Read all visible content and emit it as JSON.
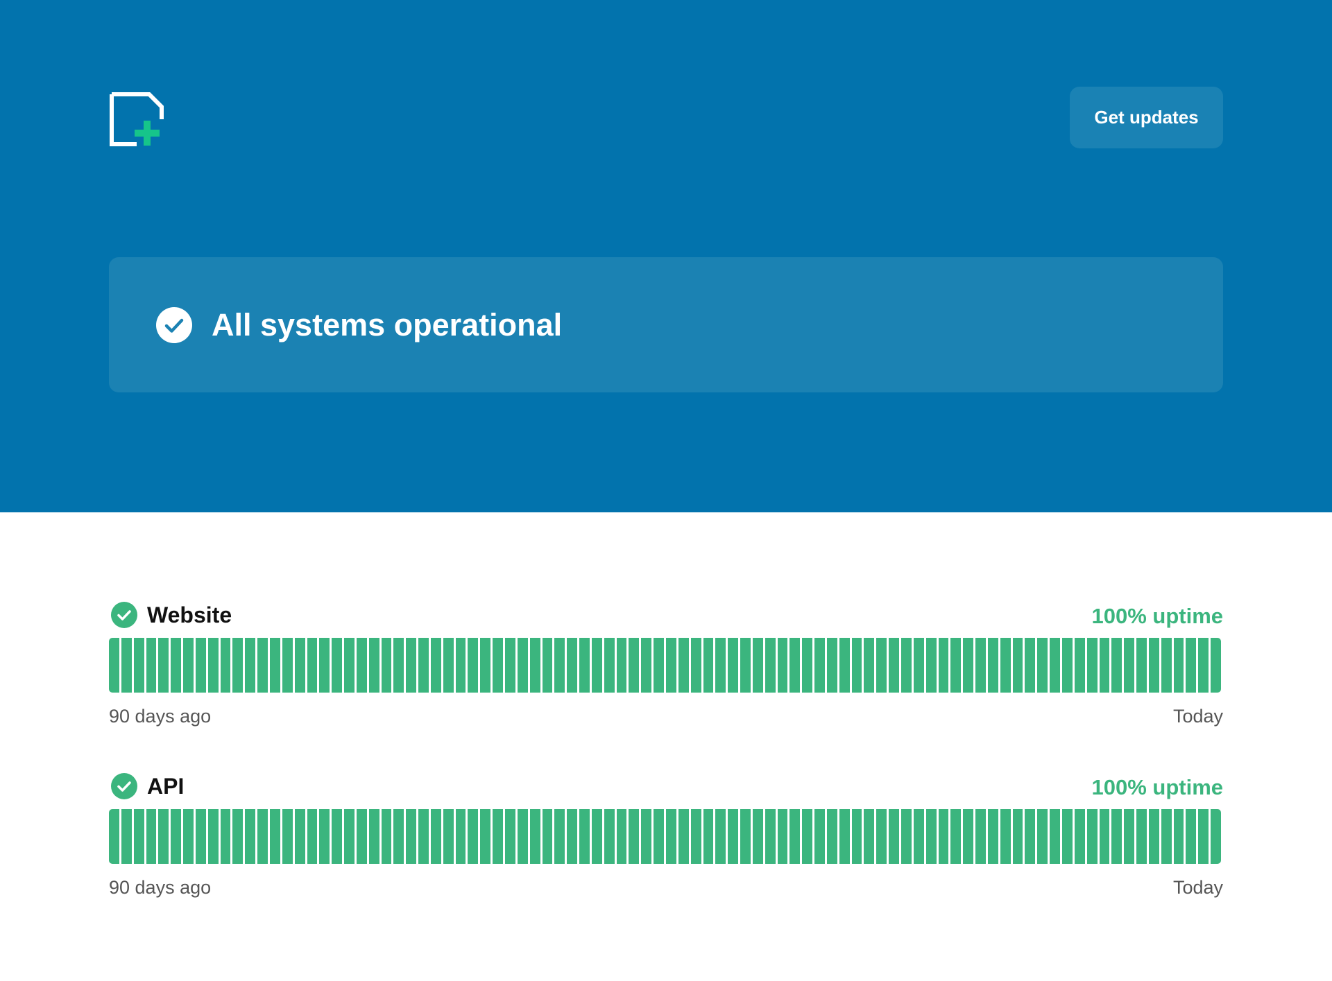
{
  "header": {
    "logo_icon": "status-page-plus-icon",
    "get_updates_label": "Get updates",
    "background_color": "#0273ad"
  },
  "banner": {
    "icon": "check-circle-icon",
    "status_text": "All systems operational"
  },
  "components": [
    {
      "name": "Website",
      "status_icon": "check-circle-icon",
      "uptime_text": "100% uptime",
      "uptime_percent": 100,
      "range_start": "90 days ago",
      "range_end": "Today",
      "day_count": 90,
      "bar_color": "#3bb57e"
    },
    {
      "name": "API",
      "status_icon": "check-circle-icon",
      "uptime_text": "100% uptime",
      "uptime_percent": 100,
      "range_start": "90 days ago",
      "range_end": "Today",
      "day_count": 90,
      "bar_color": "#3bb57e"
    }
  ],
  "colors": {
    "operational": "#3bb57e",
    "accent_plus": "#16c58a"
  }
}
